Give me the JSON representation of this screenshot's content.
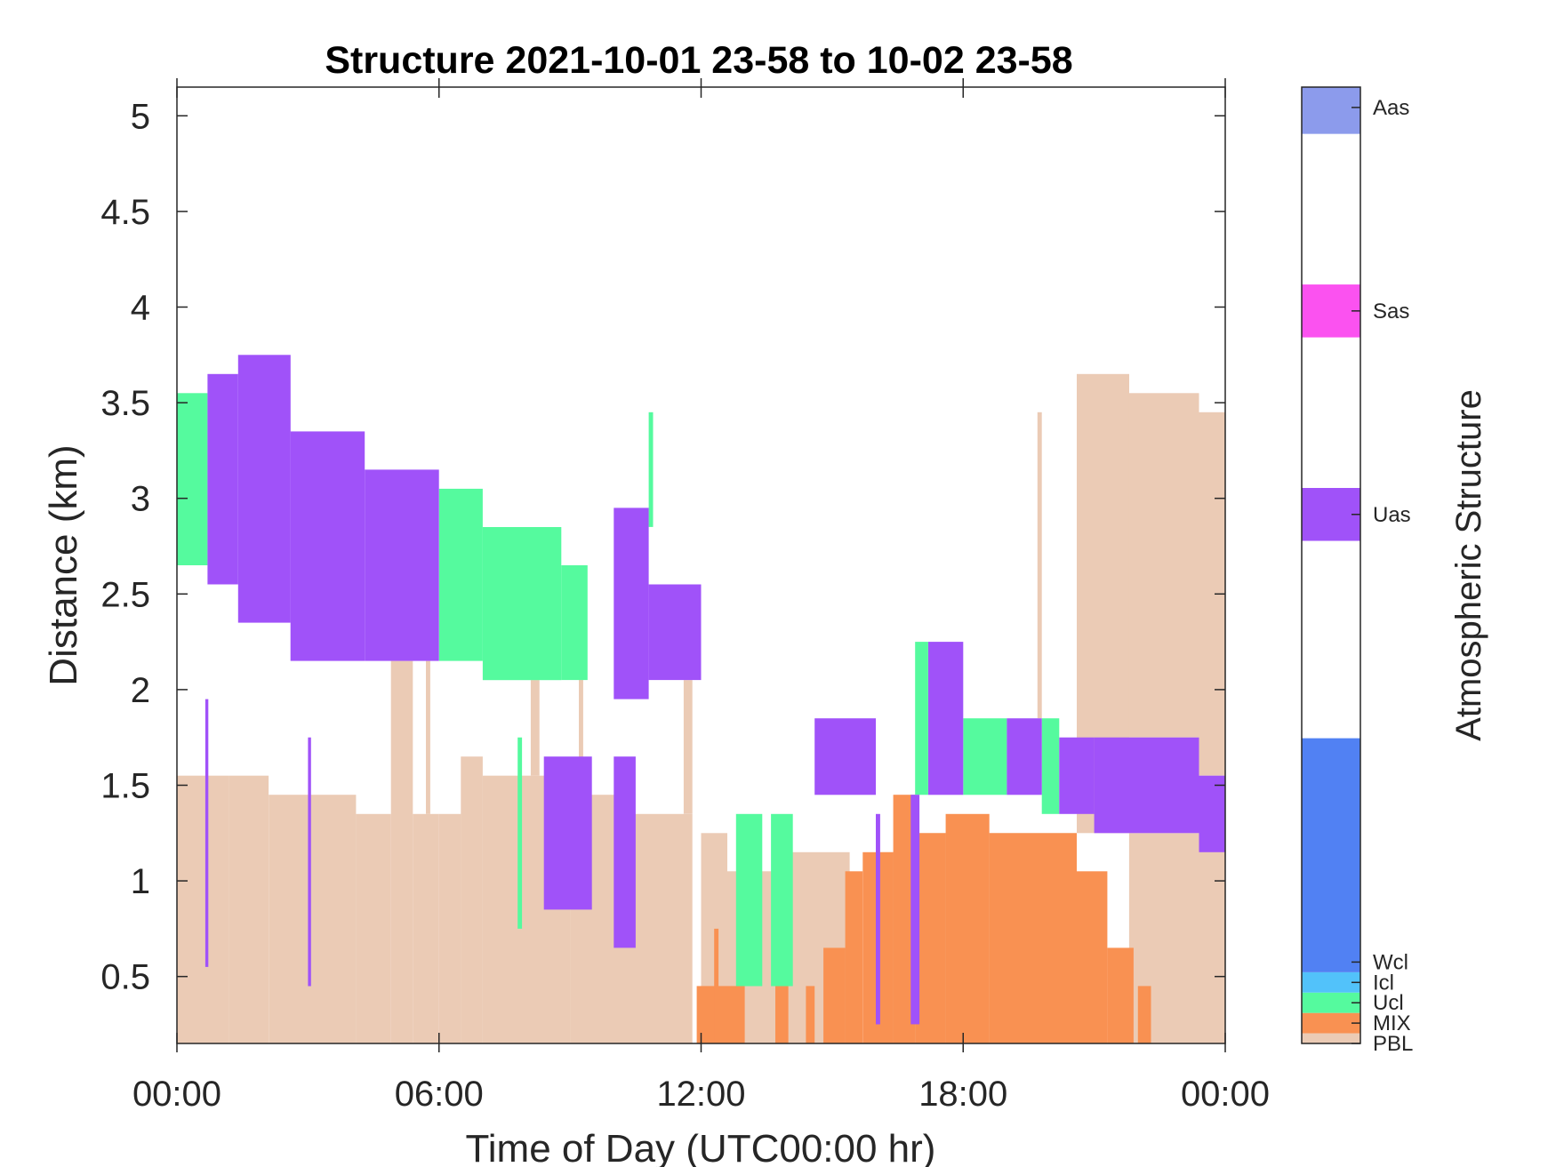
{
  "chart_data": {
    "type": "heatmap",
    "title": "Structure 2021-10-01 23-58 to 10-02 23-58",
    "xlabel": "Time of Day (UTC00:00 hr)",
    "ylabel": "Distance (km)",
    "x_unit": "hour of day",
    "xlim": [
      0,
      24
    ],
    "ylim": [
      0.15,
      5.15
    ],
    "x_ticks": [
      0,
      6,
      12,
      18,
      24
    ],
    "x_tick_labels": [
      "00:00",
      "06:00",
      "12:00",
      "18:00",
      "00:00"
    ],
    "y_ticks": [
      0.5,
      1,
      1.5,
      2,
      2.5,
      3,
      3.5,
      4,
      4.5,
      5
    ],
    "y_tick_labels": [
      "0.5",
      "1",
      "1.5",
      "2",
      "2.5",
      "3",
      "3.5",
      "4",
      "4.5",
      "5"
    ],
    "grid": false,
    "colorbar": {
      "label": "Atmospheric Structure",
      "classes": [
        {
          "name": "PBL",
          "color": "#EBCBB5",
          "level": 0.0
        },
        {
          "name": "MIX",
          "color": "#F99152",
          "level": 1.0
        },
        {
          "name": "Ucl",
          "color": "#55FA9E",
          "level": 2.0
        },
        {
          "name": "Icl",
          "color": "#52C2FA",
          "level": 3.0
        },
        {
          "name": "Wcl",
          "color": "#5181F3",
          "level": 4.0
        },
        {
          "name": "Uas",
          "color": "#A052F9",
          "level": 26.0
        },
        {
          "name": "Sas",
          "color": "#FB52F0",
          "level": 36.0
        },
        {
          "name": "Aas",
          "color": "#8C9BEC",
          "level": 46.0
        }
      ],
      "range": [
        0,
        47
      ]
    },
    "regions": [
      {
        "class": "PBL",
        "x": [
          0,
          1.2
        ],
        "y": [
          0.15,
          1.55
        ]
      },
      {
        "class": "PBL",
        "x": [
          1.2,
          2.1
        ],
        "y": [
          0.15,
          1.55
        ]
      },
      {
        "class": "PBL",
        "x": [
          2.1,
          4.1
        ],
        "y": [
          0.15,
          1.45
        ]
      },
      {
        "class": "PBL",
        "x": [
          4.1,
          4.9
        ],
        "y": [
          0.15,
          1.35
        ]
      },
      {
        "class": "PBL",
        "x": [
          4.9,
          5.4
        ],
        "y": [
          0.15,
          2.15
        ]
      },
      {
        "class": "PBL",
        "x": [
          5.4,
          6.0
        ],
        "y": [
          0.15,
          1.35
        ]
      },
      {
        "class": "PBL",
        "x": [
          6.0,
          6.5
        ],
        "y": [
          0.15,
          1.35
        ]
      },
      {
        "class": "PBL",
        "x": [
          6.5,
          7.0
        ],
        "y": [
          0.15,
          1.65
        ]
      },
      {
        "class": "PBL",
        "x": [
          7.0,
          9.0
        ],
        "y": [
          0.15,
          1.55
        ]
      },
      {
        "class": "PBL",
        "x": [
          9.0,
          10.3
        ],
        "y": [
          0.15,
          1.45
        ]
      },
      {
        "class": "PBL",
        "x": [
          10.3,
          11.8
        ],
        "y": [
          0.15,
          1.35
        ]
      },
      {
        "class": "PBL",
        "x": [
          12.0,
          12.6
        ],
        "y": [
          0.15,
          1.25
        ]
      },
      {
        "class": "PBL",
        "x": [
          12.6,
          14.0
        ],
        "y": [
          0.15,
          1.05
        ]
      },
      {
        "class": "PBL",
        "x": [
          14.0,
          15.4
        ],
        "y": [
          0.15,
          1.15
        ]
      },
      {
        "class": "PBL",
        "x": [
          16.0,
          17.0
        ],
        "y": [
          0.15,
          1.15
        ]
      },
      {
        "class": "PBL",
        "x": [
          17.0,
          20.6
        ],
        "y": [
          0.15,
          1.25
        ]
      },
      {
        "class": "PBL",
        "x": [
          20.6,
          21.8
        ],
        "y": [
          1.25,
          3.65
        ]
      },
      {
        "class": "PBL",
        "x": [
          21.8,
          23.4
        ],
        "y": [
          1.75,
          3.55
        ]
      },
      {
        "class": "PBL",
        "x": [
          23.4,
          24.0
        ],
        "y": [
          1.55,
          3.45
        ]
      },
      {
        "class": "PBL",
        "x": [
          21.8,
          24.0
        ],
        "y": [
          0.15,
          1.25
        ]
      },
      {
        "class": "PBL",
        "x": [
          5.7,
          5.8
        ],
        "y": [
          1.35,
          2.15
        ]
      },
      {
        "class": "PBL",
        "x": [
          8.1,
          8.3
        ],
        "y": [
          1.55,
          2.05
        ]
      },
      {
        "class": "PBL",
        "x": [
          9.2,
          9.3
        ],
        "y": [
          1.45,
          2.45
        ]
      },
      {
        "class": "PBL",
        "x": [
          11.6,
          11.8
        ],
        "y": [
          1.35,
          2.05
        ]
      },
      {
        "class": "PBL",
        "x": [
          19.7,
          19.8
        ],
        "y": [
          1.85,
          3.45
        ]
      },
      {
        "class": "MIX",
        "x": [
          11.9,
          13.0
        ],
        "y": [
          0.15,
          0.45
        ]
      },
      {
        "class": "MIX",
        "x": [
          12.3,
          12.4
        ],
        "y": [
          0.15,
          0.75
        ]
      },
      {
        "class": "MIX",
        "x": [
          13.7,
          14.0
        ],
        "y": [
          0.15,
          0.45
        ]
      },
      {
        "class": "MIX",
        "x": [
          14.4,
          14.6
        ],
        "y": [
          0.15,
          0.45
        ]
      },
      {
        "class": "MIX",
        "x": [
          14.8,
          15.3
        ],
        "y": [
          0.15,
          0.65
        ]
      },
      {
        "class": "MIX",
        "x": [
          15.3,
          15.7
        ],
        "y": [
          0.15,
          1.05
        ]
      },
      {
        "class": "MIX",
        "x": [
          15.7,
          16.4
        ],
        "y": [
          0.15,
          1.15
        ]
      },
      {
        "class": "MIX",
        "x": [
          16.4,
          16.9
        ],
        "y": [
          0.15,
          1.45
        ]
      },
      {
        "class": "MIX",
        "x": [
          16.9,
          17.6
        ],
        "y": [
          0.15,
          1.25
        ]
      },
      {
        "class": "MIX",
        "x": [
          17.6,
          18.6
        ],
        "y": [
          0.15,
          1.35
        ]
      },
      {
        "class": "MIX",
        "x": [
          18.6,
          20.6
        ],
        "y": [
          0.15,
          1.25
        ]
      },
      {
        "class": "MIX",
        "x": [
          20.6,
          21.3
        ],
        "y": [
          0.15,
          1.05
        ]
      },
      {
        "class": "MIX",
        "x": [
          21.3,
          21.9
        ],
        "y": [
          0.15,
          0.65
        ]
      },
      {
        "class": "MIX",
        "x": [
          22.0,
          22.3
        ],
        "y": [
          0.15,
          0.45
        ]
      },
      {
        "class": "Ucl",
        "x": [
          0,
          0.7
        ],
        "y": [
          2.65,
          3.55
        ]
      },
      {
        "class": "Ucl",
        "x": [
          6.0,
          7.0
        ],
        "y": [
          2.15,
          3.05
        ]
      },
      {
        "class": "Ucl",
        "x": [
          7.0,
          8.8
        ],
        "y": [
          2.05,
          2.85
        ]
      },
      {
        "class": "Ucl",
        "x": [
          8.8,
          9.4
        ],
        "y": [
          2.05,
          2.65
        ]
      },
      {
        "class": "Ucl",
        "x": [
          7.8,
          7.9
        ],
        "y": [
          0.75,
          1.75
        ]
      },
      {
        "class": "Ucl",
        "x": [
          12.8,
          13.4
        ],
        "y": [
          0.45,
          1.35
        ]
      },
      {
        "class": "Ucl",
        "x": [
          13.6,
          14.1
        ],
        "y": [
          0.45,
          1.35
        ]
      },
      {
        "class": "Ucl",
        "x": [
          16.9,
          17.2
        ],
        "y": [
          1.45,
          2.25
        ]
      },
      {
        "class": "Ucl",
        "x": [
          18.0,
          19.0
        ],
        "y": [
          1.45,
          1.85
        ]
      },
      {
        "class": "Ucl",
        "x": [
          19.8,
          20.2
        ],
        "y": [
          1.35,
          1.85
        ]
      },
      {
        "class": "Ucl",
        "x": [
          10.8,
          10.9
        ],
        "y": [
          2.85,
          3.45
        ]
      },
      {
        "class": "Uas",
        "x": [
          0.7,
          1.4
        ],
        "y": [
          2.55,
          3.65
        ]
      },
      {
        "class": "Uas",
        "x": [
          1.4,
          2.6
        ],
        "y": [
          2.35,
          3.75
        ]
      },
      {
        "class": "Uas",
        "x": [
          2.6,
          4.3
        ],
        "y": [
          2.15,
          3.35
        ]
      },
      {
        "class": "Uas",
        "x": [
          4.3,
          6.0
        ],
        "y": [
          2.15,
          3.15
        ]
      },
      {
        "class": "Uas",
        "x": [
          8.4,
          9.5
        ],
        "y": [
          0.85,
          1.65
        ]
      },
      {
        "class": "Uas",
        "x": [
          10.0,
          10.5
        ],
        "y": [
          0.65,
          1.65
        ]
      },
      {
        "class": "Uas",
        "x": [
          10.0,
          10.8
        ],
        "y": [
          1.95,
          2.95
        ]
      },
      {
        "class": "Uas",
        "x": [
          10.8,
          12.0
        ],
        "y": [
          2.05,
          2.55
        ]
      },
      {
        "class": "Uas",
        "x": [
          14.6,
          16.0
        ],
        "y": [
          1.45,
          1.85
        ]
      },
      {
        "class": "Uas",
        "x": [
          17.2,
          18.0
        ],
        "y": [
          1.45,
          2.25
        ]
      },
      {
        "class": "Uas",
        "x": [
          19.0,
          19.8
        ],
        "y": [
          1.45,
          1.85
        ]
      },
      {
        "class": "Uas",
        "x": [
          20.2,
          21.0
        ],
        "y": [
          1.35,
          1.75
        ]
      },
      {
        "class": "Uas",
        "x": [
          21.0,
          23.4
        ],
        "y": [
          1.25,
          1.75
        ]
      },
      {
        "class": "Uas",
        "x": [
          23.4,
          24.0
        ],
        "y": [
          1.15,
          1.55
        ]
      },
      {
        "class": "Uas",
        "x": [
          0.65,
          0.72
        ],
        "y": [
          0.55,
          1.95
        ]
      },
      {
        "class": "Uas",
        "x": [
          3.0,
          3.07
        ],
        "y": [
          0.45,
          1.75
        ]
      },
      {
        "class": "Uas",
        "x": [
          16.0,
          16.1
        ],
        "y": [
          0.25,
          1.35
        ]
      },
      {
        "class": "Uas",
        "x": [
          16.8,
          17.0
        ],
        "y": [
          0.25,
          1.45
        ]
      }
    ]
  }
}
